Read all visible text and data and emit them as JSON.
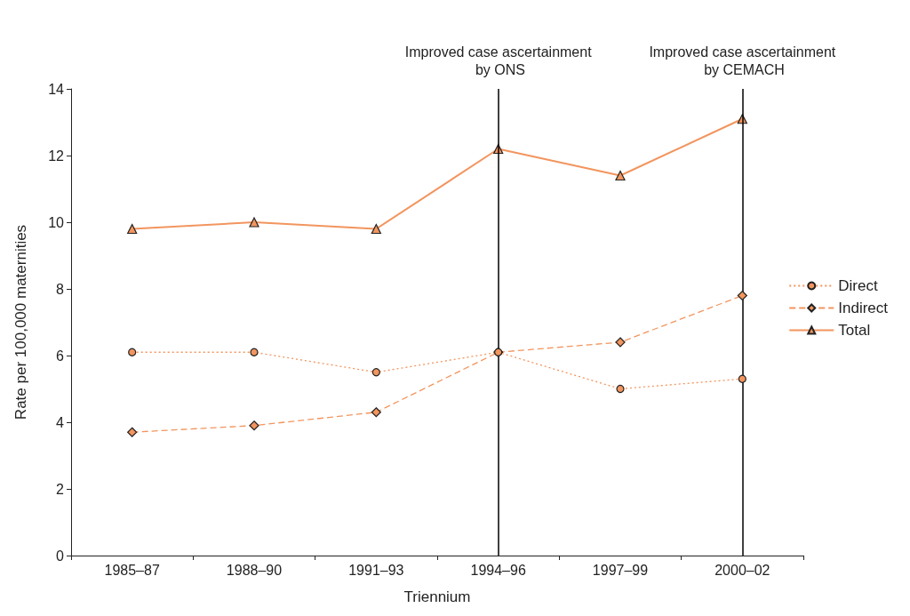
{
  "chart_data": {
    "type": "line",
    "xlabel": "Triennium",
    "ylabel": "Rate per 100,000 maternities",
    "categories": [
      "1985–87",
      "1988–90",
      "1991–93",
      "1994–96",
      "1997–99",
      "2000–02"
    ],
    "series": [
      {
        "name": "Direct",
        "color": "#f2955e",
        "marker": "circle",
        "line_style": "dotted",
        "values": [
          6.1,
          6.1,
          5.5,
          6.1,
          5.0,
          5.3
        ]
      },
      {
        "name": "Indirect",
        "color": "#f2955e",
        "marker": "diamond",
        "line_style": "dashed",
        "values": [
          3.7,
          3.9,
          4.3,
          6.1,
          6.4,
          7.8
        ]
      },
      {
        "name": "Total",
        "color": "#f2955e",
        "marker": "triangle",
        "line_style": "solid",
        "values": [
          9.8,
          10.0,
          9.8,
          12.2,
          11.4,
          13.1
        ]
      }
    ],
    "ylim": [
      0,
      14
    ],
    "yticks": [
      0,
      2,
      4,
      6,
      8,
      10,
      12,
      14
    ],
    "grid": false,
    "legend": "right",
    "ref_lines": [
      {
        "axis": "x",
        "value": "1994–96",
        "label": "Improved case ascertainment by ONS",
        "color": "#000000"
      },
      {
        "axis": "x",
        "value": "2000–02",
        "label": "Improved case ascertainment by CEMACH",
        "color": "#000000"
      }
    ]
  }
}
